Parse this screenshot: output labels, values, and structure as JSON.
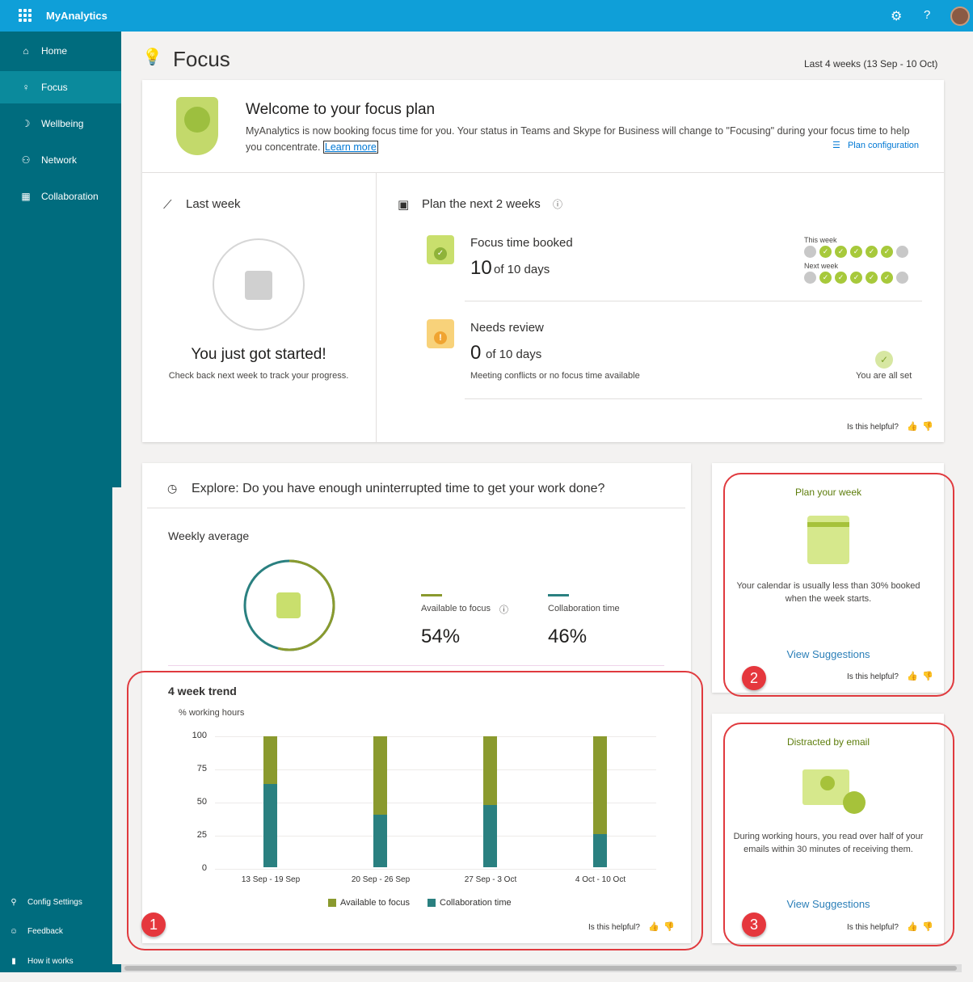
{
  "app": {
    "name": "MyAnalytics"
  },
  "sidebar": {
    "items": [
      {
        "label": "Home",
        "icon": "home-icon"
      },
      {
        "label": "Focus",
        "icon": "bulb-icon"
      },
      {
        "label": "Wellbeing",
        "icon": "moon-icon"
      },
      {
        "label": "Network",
        "icon": "network-icon"
      },
      {
        "label": "Collaboration",
        "icon": "calendar-icon"
      }
    ],
    "footer": [
      {
        "label": "Config Settings",
        "icon": "user-settings-icon"
      },
      {
        "label": "Feedback",
        "icon": "feedback-icon"
      },
      {
        "label": "How it works",
        "icon": "book-icon"
      }
    ]
  },
  "header": {
    "title": "Focus",
    "range": "Last 4 weeks (13 Sep - 10 Oct)"
  },
  "welcome": {
    "title": "Welcome to your focus plan",
    "text": "MyAnalytics is now booking focus time for you. Your status in Teams and Skype for Business will change to \"Focusing\" during your focus time to help you concentrate.",
    "link": "Learn more",
    "config": "Plan configuration"
  },
  "last_week": {
    "title": "Last week",
    "heading": "You just got started!",
    "sub": "Check back next week to track your progress."
  },
  "plan": {
    "title": "Plan the next 2 weeks",
    "booked_label": "Focus time booked",
    "booked_value": "10",
    "booked_of": "of 10 days",
    "review_label": "Needs review",
    "review_value": "0",
    "review_of": "of 10 days",
    "review_note": "Meeting conflicts or no focus time available",
    "this_week": "This week",
    "next_week": "Next week",
    "this_week_days": [
      false,
      true,
      true,
      true,
      true,
      true,
      false
    ],
    "next_week_days": [
      false,
      true,
      true,
      true,
      true,
      true,
      false
    ],
    "all_set": "You are all set",
    "helpful": "Is this helpful?"
  },
  "explore": {
    "title": "Explore: Do you have enough uninterrupted time to get your work done?",
    "weekly_label": "Weekly average",
    "available_label": "Available to focus",
    "available_pct": "54%",
    "collab_label": "Collaboration time",
    "collab_pct": "46%",
    "trend_label": "4 week trend",
    "helpful": "Is this helpful?",
    "colors": {
      "focus": "#8a9a2e",
      "collab": "#2a8080"
    }
  },
  "chart_data": {
    "type": "bar",
    "stacked": true,
    "ylabel": "% working hours",
    "ylim": [
      0,
      100
    ],
    "yticks": [
      "100",
      "75",
      "50",
      "25",
      "0"
    ],
    "categories": [
      "13 Sep - 19 Sep",
      "20 Sep - 26 Sep",
      "27 Sep - 3 Oct",
      "4 Oct - 10 Oct"
    ],
    "series": [
      {
        "name": "Collaboration time",
        "values": [
          64,
          41,
          48,
          26
        ]
      },
      {
        "name": "Available to focus",
        "values": [
          36,
          59,
          52,
          74
        ]
      }
    ],
    "legend": "bottom",
    "grid": true
  },
  "cards": {
    "plan_week": {
      "title": "Plan your week",
      "text": "Your calendar is usually less than 30% booked when the week starts.",
      "link": "View Suggestions",
      "helpful": "Is this helpful?",
      "badge": "2"
    },
    "email": {
      "title": "Distracted by email",
      "text": "During working hours, you read over half of your emails within 30 minutes of receiving them.",
      "link": "View Suggestions",
      "helpful": "Is this helpful?",
      "badge": "3"
    },
    "trend_badge": "1"
  }
}
